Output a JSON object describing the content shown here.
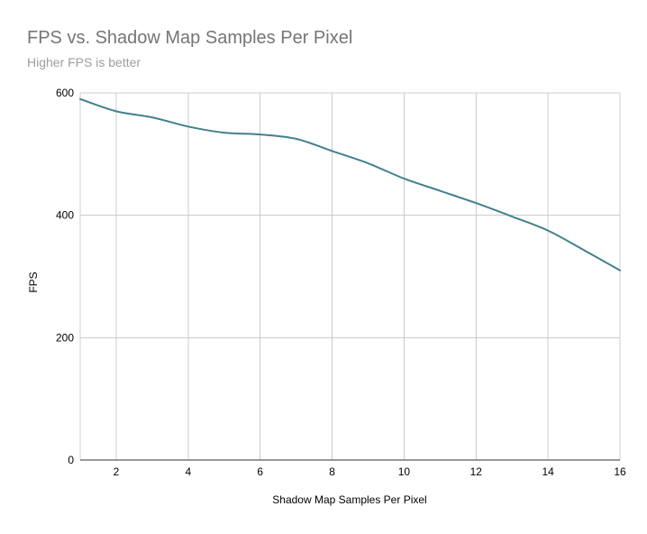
{
  "chart_data": {
    "type": "line",
    "title": "FPS vs. Shadow Map Samples Per Pixel",
    "subtitle": "Higher FPS is better",
    "xlabel": "Shadow Map Samples Per Pixel",
    "ylabel": "FPS",
    "xlim": [
      1,
      16
    ],
    "ylim": [
      0,
      600
    ],
    "x_ticks": [
      2,
      4,
      6,
      8,
      10,
      12,
      14,
      16
    ],
    "y_ticks": [
      0,
      200,
      400,
      600
    ],
    "grid": true,
    "line_color": "#43808e",
    "series": [
      {
        "x": [
          1,
          2,
          3,
          4,
          5,
          6,
          7,
          8,
          9,
          10,
          11,
          12,
          13,
          14,
          15,
          16
        ],
        "values": [
          590,
          570,
          560,
          545,
          535,
          532,
          525,
          505,
          485,
          460,
          440,
          420,
          398,
          375,
          343,
          310
        ]
      }
    ]
  }
}
